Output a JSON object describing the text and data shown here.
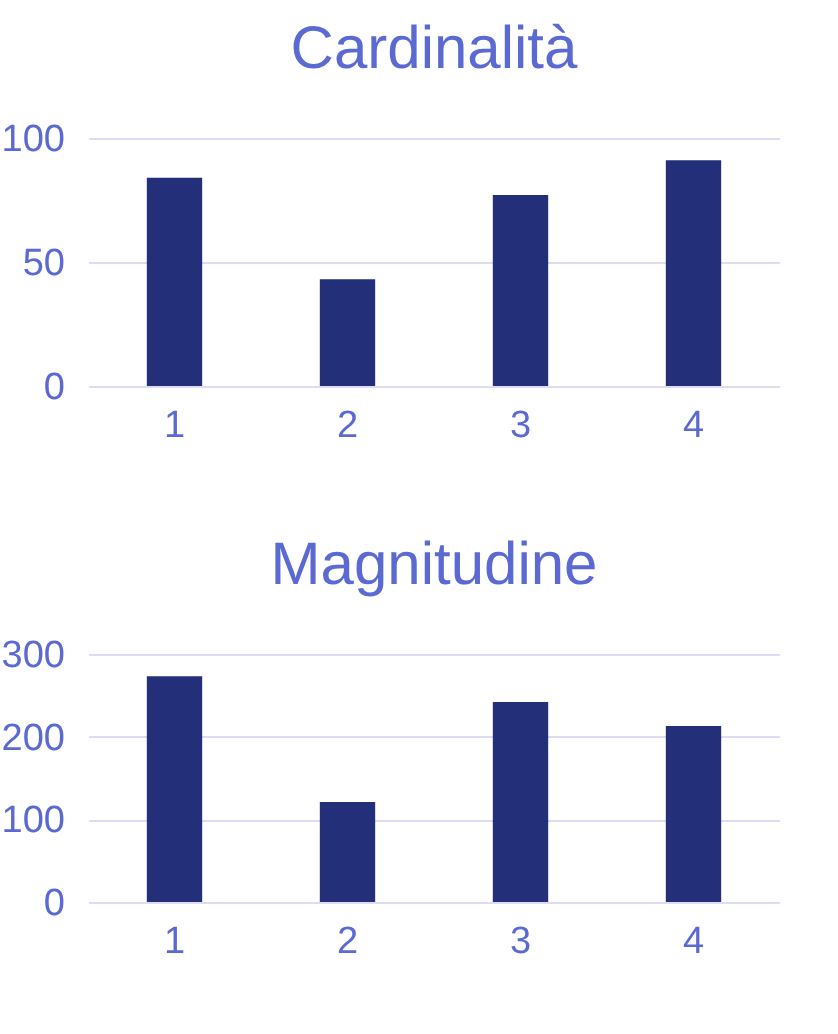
{
  "chart_data": [
    {
      "type": "bar",
      "title": "Cardinalità",
      "categories": [
        "1",
        "2",
        "3",
        "4"
      ],
      "values": [
        84,
        43,
        77,
        91
      ],
      "color": "#232f78",
      "ylim": [
        0,
        100
      ],
      "yticks": [
        0,
        50,
        100
      ],
      "grid": "y"
    },
    {
      "type": "bar",
      "title": "Magnitudine",
      "categories": [
        "1",
        "2",
        "3",
        "4"
      ],
      "values": [
        273,
        121,
        242,
        213
      ],
      "color": "#232f78",
      "ylim": [
        0,
        300
      ],
      "yticks": [
        0,
        100,
        200,
        300
      ],
      "grid": "y"
    }
  ]
}
